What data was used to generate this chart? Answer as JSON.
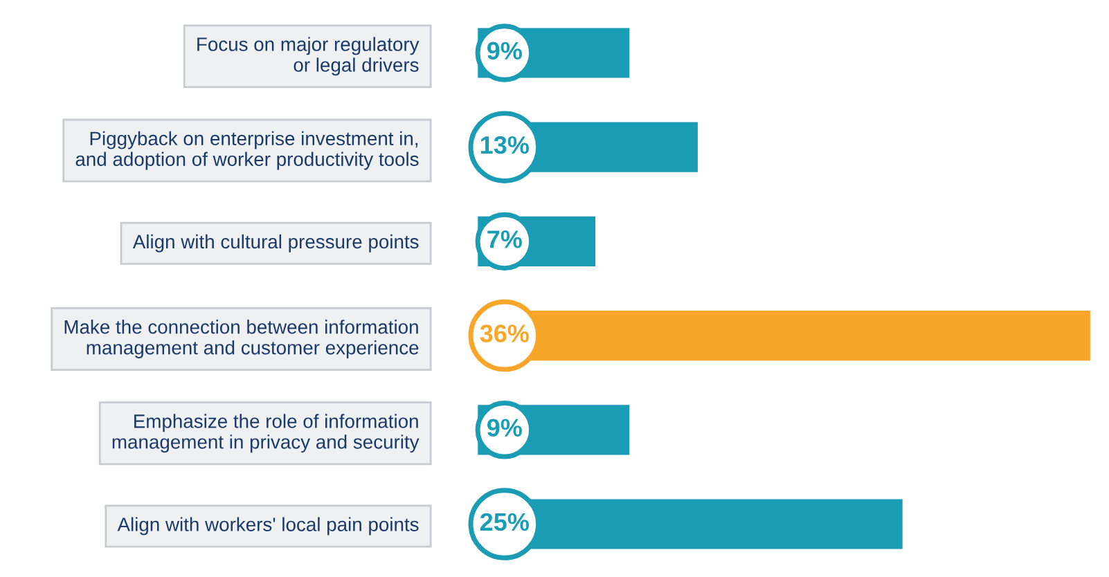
{
  "chart_data": {
    "type": "bar",
    "orientation": "horizontal",
    "categories": [
      "Focus on major regulatory\nor legal drivers",
      "Piggyback on enterprise investment in,\nand adoption of worker productivity tools",
      "Align with cultural pressure points",
      "Make the connection between information\nmanagement and customer experience",
      "Emphasize the role of information\nmanagement in privacy and security",
      "Align with workers' local pain points"
    ],
    "values": [
      9,
      13,
      7,
      36,
      9,
      25
    ],
    "colors": [
      "#1a9cb4",
      "#1a9cb4",
      "#1a9cb4",
      "#f7a629",
      "#1a9cb4",
      "#1a9cb4"
    ],
    "value_labels": [
      "9%",
      "13%",
      "7%",
      "36%",
      "9%",
      "25%"
    ]
  }
}
